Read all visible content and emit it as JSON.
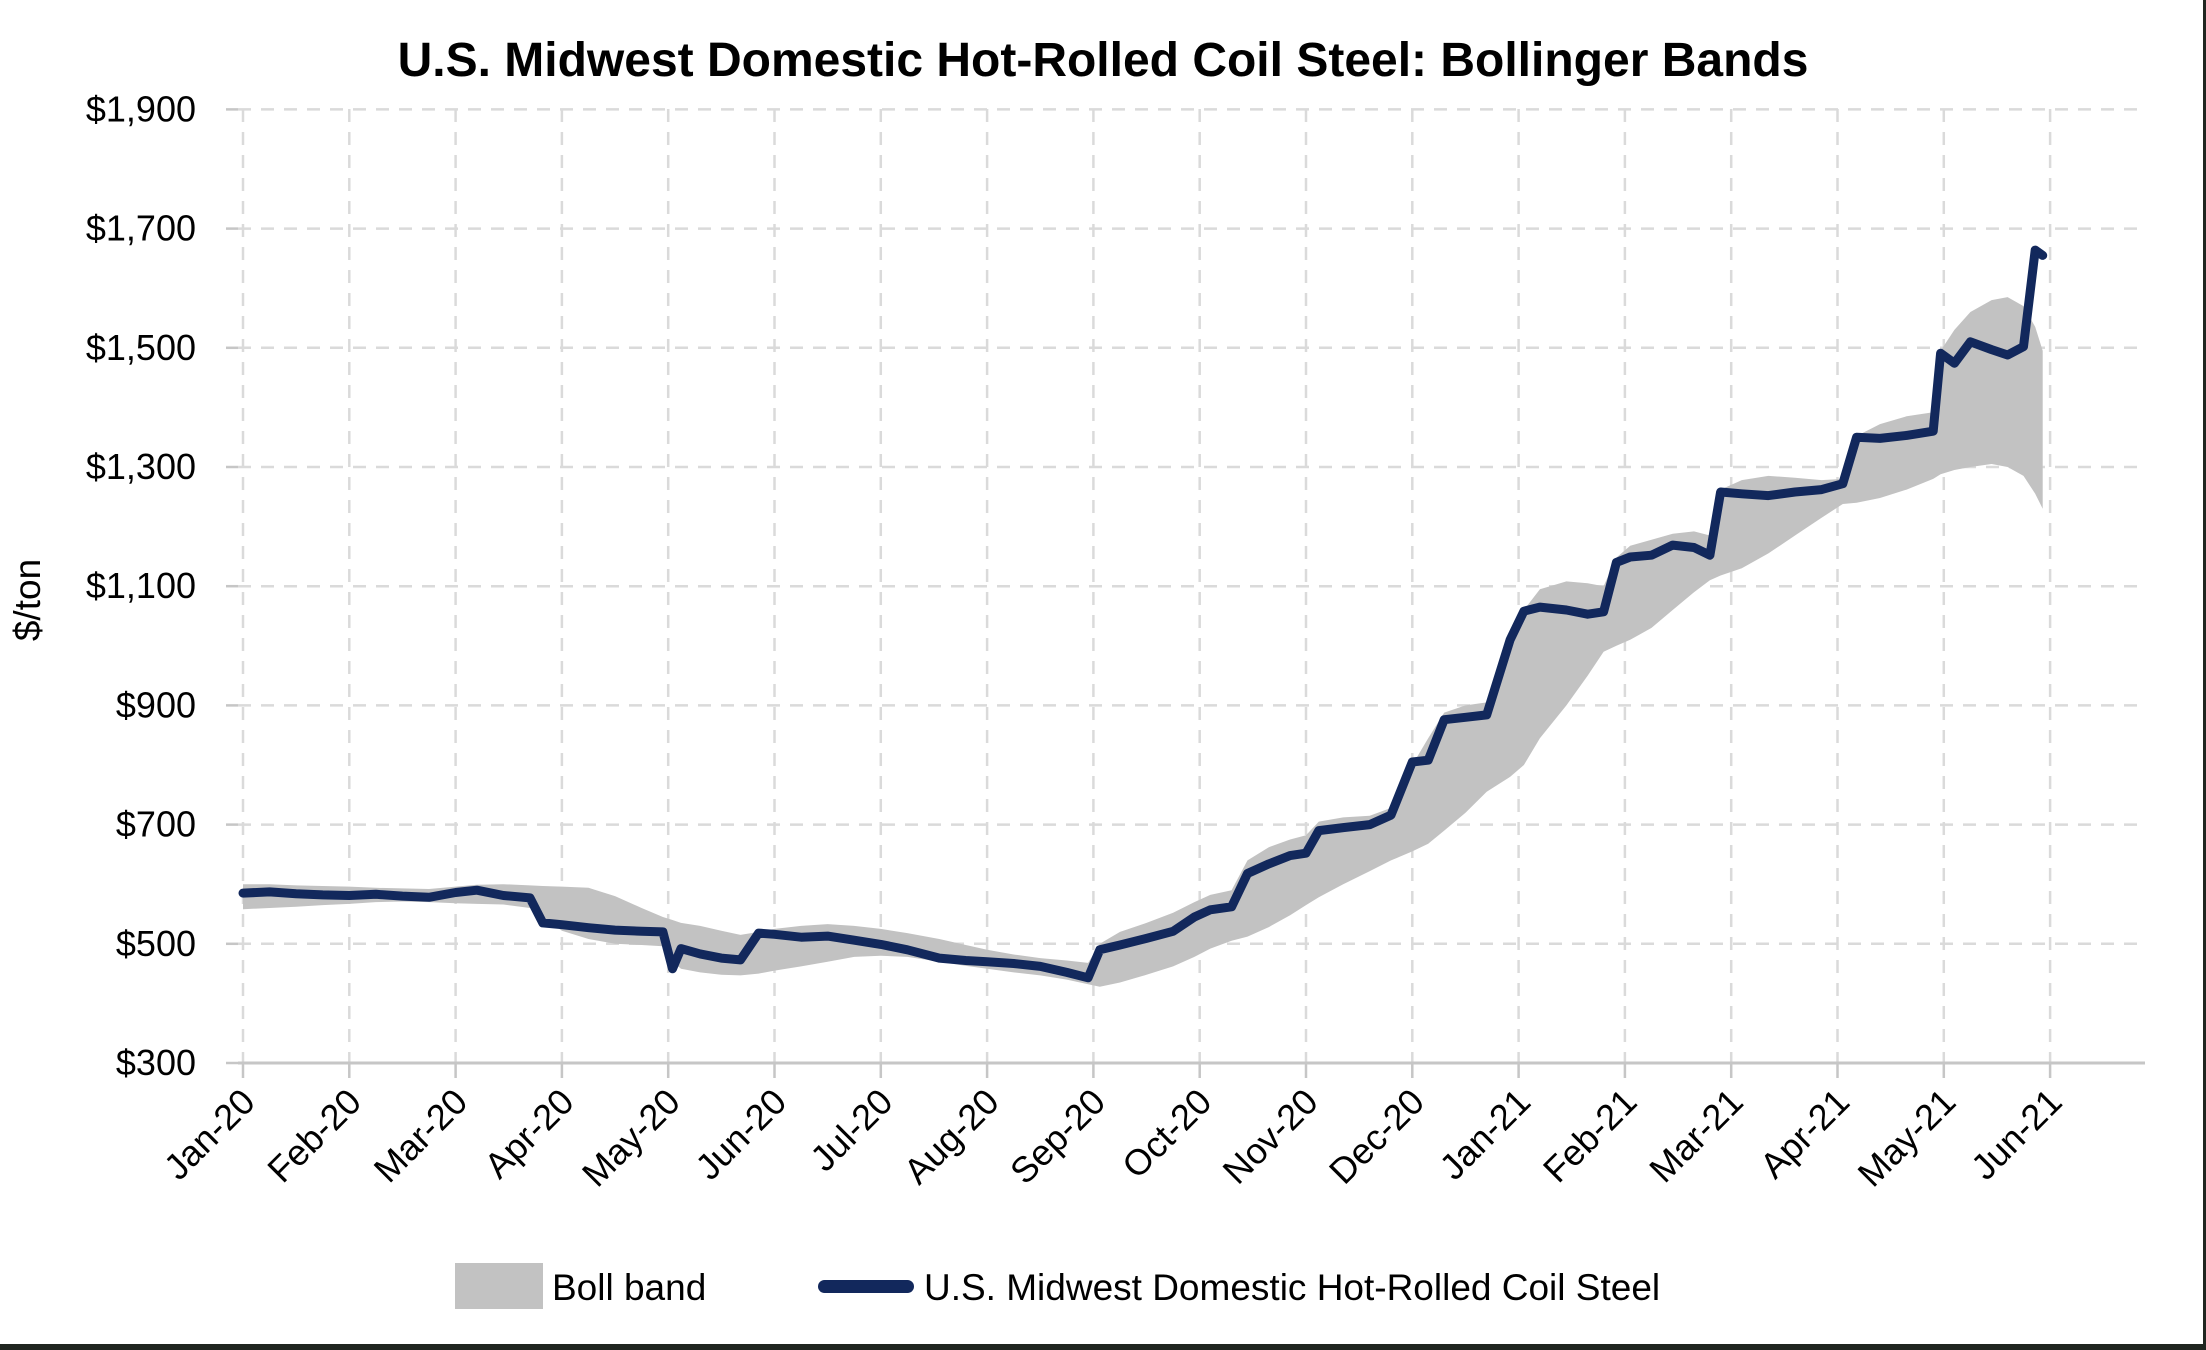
{
  "title": "U.S. Midwest Domestic Hot-Rolled Coil Steel: Bollinger Bands",
  "y_axis": {
    "label": "$/ton",
    "tick_labels": [
      "$1,900",
      "$1,700",
      "$1,500",
      "$1,300",
      "$1,100",
      "$900",
      "$700",
      "$500",
      "$300"
    ],
    "tick_values": [
      1900,
      1700,
      1500,
      1300,
      1100,
      900,
      700,
      500,
      300
    ]
  },
  "x_axis": {
    "tick_labels": [
      "Jan-20",
      "Feb-20",
      "Mar-20",
      "Apr-20",
      "May-20",
      "Jun-20",
      "Jul-20",
      "Aug-20",
      "Sep-20",
      "Oct-20",
      "Nov-20",
      "Dec-20",
      "Jan-21",
      "Feb-21",
      "Mar-21",
      "Apr-21",
      "May-21",
      "Jun-21"
    ]
  },
  "legend": {
    "band_label": "Boll band",
    "line_label": "U.S. Midwest Domestic Hot-Rolled Coil Steel"
  },
  "colors": {
    "price_line": "#12285C",
    "band_fill": "#C2C2C2",
    "gridline": "#DADADA",
    "axis_line": "#C6C6C6",
    "text": "#000000",
    "screenshot_border": "#202620"
  },
  "chart_data": {
    "type": "line",
    "title": "U.S. Midwest Domestic Hot-Rolled Coil Steel: Bollinger Bands",
    "xlabel": "",
    "ylabel": "$/ton",
    "ylim": [
      300,
      1900
    ],
    "ytick_step": 200,
    "grid": "dashed",
    "legend_position": "bottom",
    "x_unit": "months after Jan-2020 (fractional, ~weekly samples)",
    "x_tick_labels": [
      "Jan-20",
      "Feb-20",
      "Mar-20",
      "Apr-20",
      "May-20",
      "Jun-20",
      "Jul-20",
      "Aug-20",
      "Sep-20",
      "Oct-20",
      "Nov-20",
      "Dec-20",
      "Jan-21",
      "Feb-21",
      "Mar-21",
      "Apr-21",
      "May-21",
      "Jun-21"
    ],
    "x": [
      0,
      0.25,
      0.5,
      0.75,
      1.0,
      1.25,
      1.5,
      1.75,
      2.0,
      2.2,
      2.45,
      2.7,
      2.82,
      3.0,
      3.25,
      3.5,
      3.75,
      3.95,
      4.04,
      4.12,
      4.3,
      4.5,
      4.68,
      4.85,
      5.0,
      5.25,
      5.5,
      5.75,
      6.0,
      6.25,
      6.55,
      6.8,
      7.0,
      7.25,
      7.5,
      7.75,
      7.95,
      8.06,
      8.25,
      8.5,
      8.75,
      8.95,
      9.1,
      9.3,
      9.45,
      9.65,
      9.85,
      10.0,
      10.12,
      10.35,
      10.6,
      10.8,
      11.0,
      11.15,
      11.3,
      11.5,
      11.7,
      11.92,
      12.05,
      12.2,
      12.45,
      12.65,
      12.8,
      12.92,
      13.05,
      13.25,
      13.45,
      13.65,
      13.8,
      13.9,
      14.1,
      14.35,
      14.6,
      14.85,
      15.05,
      15.18,
      15.4,
      15.65,
      15.9,
      15.97,
      16.1,
      16.25,
      16.45,
      16.6,
      16.75,
      16.86,
      16.93
    ],
    "series": [
      {
        "name": "U.S. Midwest Domestic Hot-Rolled Coil Steel",
        "type": "line",
        "color": "#12285C",
        "values": [
          585,
          587,
          584,
          582,
          581,
          583,
          580,
          578,
          586,
          590,
          581,
          577,
          535,
          532,
          527,
          523,
          521,
          520,
          458,
          492,
          483,
          476,
          473,
          518,
          516,
          511,
          513,
          506,
          499,
          490,
          476,
          472,
          470,
          467,
          462,
          452,
          443,
          490,
          498,
          509,
          521,
          545,
          557,
          562,
          618,
          634,
          648,
          652,
          690,
          695,
          700,
          716,
          805,
          808,
          876,
          880,
          884,
          1010,
          1058,
          1065,
          1060,
          1053,
          1057,
          1140,
          1149,
          1152,
          1169,
          1165,
          1152,
          1258,
          1255,
          1252,
          1258,
          1262,
          1272,
          1350,
          1348,
          1353,
          1360,
          1491,
          1474,
          1510,
          1497,
          1488,
          1502,
          1664,
          1655
        ]
      },
      {
        "name": "Boll band (upper)",
        "type": "band-upper",
        "color": "#C2C2C2",
        "values": [
          600,
          600,
          598,
          597,
          596,
          594,
          593,
          592,
          596,
          599,
          600,
          598,
          597,
          596,
          594,
          580,
          560,
          545,
          540,
          535,
          530,
          522,
          515,
          520,
          525,
          530,
          533,
          530,
          525,
          518,
          508,
          498,
          490,
          482,
          476,
          472,
          468,
          500,
          520,
          535,
          552,
          570,
          582,
          590,
          640,
          662,
          675,
          682,
          705,
          712,
          715,
          728,
          800,
          845,
          888,
          900,
          905,
          1015,
          1060,
          1095,
          1108,
          1105,
          1100,
          1148,
          1168,
          1178,
          1188,
          1192,
          1185,
          1262,
          1278,
          1285,
          1282,
          1278,
          1280,
          1352,
          1372,
          1385,
          1392,
          1495,
          1530,
          1560,
          1580,
          1585,
          1570,
          1535,
          1495
        ]
      },
      {
        "name": "Boll band (lower)",
        "type": "band-lower",
        "color": "#C2C2C2",
        "values": [
          558,
          560,
          562,
          565,
          567,
          570,
          571,
          570,
          568,
          567,
          566,
          560,
          545,
          522,
          508,
          500,
          498,
          496,
          470,
          458,
          452,
          448,
          447,
          450,
          455,
          462,
          470,
          478,
          480,
          478,
          470,
          463,
          458,
          452,
          447,
          440,
          432,
          428,
          435,
          448,
          462,
          478,
          492,
          505,
          512,
          528,
          548,
          565,
          578,
          600,
          622,
          640,
          655,
          668,
          690,
          720,
          755,
          780,
          800,
          845,
          900,
          950,
          990,
          1000,
          1010,
          1030,
          1060,
          1090,
          1110,
          1118,
          1130,
          1155,
          1185,
          1215,
          1238,
          1240,
          1248,
          1262,
          1280,
          1288,
          1295,
          1300,
          1305,
          1300,
          1285,
          1255,
          1230
        ]
      }
    ]
  }
}
